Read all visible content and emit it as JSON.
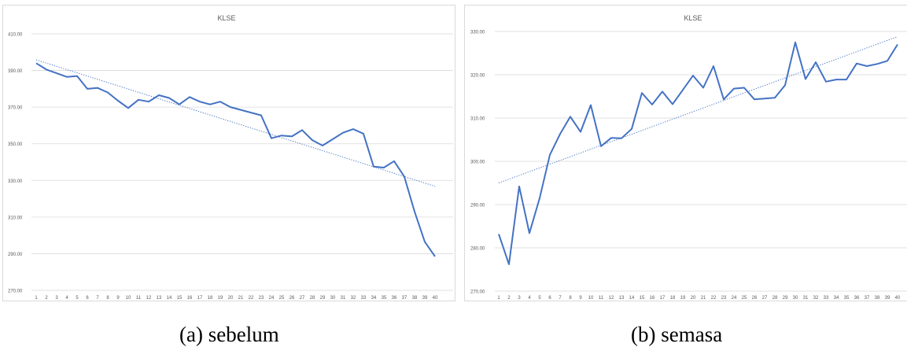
{
  "colors": {
    "line": "#4472c4",
    "trend": "#4472c4",
    "grid": "#d9d9d9",
    "tick_text": "#595959"
  },
  "captions": {
    "a": "(a)  sebelum",
    "b": "(b) semasa"
  },
  "chart_data": [
    {
      "type": "line",
      "title": "KLSE",
      "xlabel": "",
      "ylabel": "",
      "ylim": [
        270,
        410
      ],
      "yticks": [
        "270.00",
        "290.00",
        "310.00",
        "330.00",
        "350.00",
        "370.00",
        "390.00",
        "410.00"
      ],
      "x": [
        "1",
        "2",
        "3",
        "4",
        "5",
        "6",
        "7",
        "8",
        "9",
        "10",
        "11",
        "12",
        "13",
        "14",
        "15",
        "16",
        "17",
        "18",
        "19",
        "20",
        "21",
        "22",
        "23",
        "24",
        "25",
        "26",
        "27",
        "28",
        "29",
        "30",
        "31",
        "32",
        "33",
        "34",
        "35",
        "36",
        "37",
        "38",
        "39",
        "40"
      ],
      "grid": true,
      "trendline": {
        "type": "linear",
        "style": "dotted",
        "start": 395.8,
        "end": 326.8
      },
      "series": [
        {
          "values": [
            394.0,
            390.5,
            388.5,
            386.5,
            387.0,
            380.0,
            380.5,
            378.0,
            373.5,
            369.5,
            374.0,
            373.0,
            376.5,
            375.0,
            371.5,
            375.5,
            373.0,
            371.5,
            373.0,
            370.0,
            368.5,
            367.0,
            365.5,
            353.0,
            354.5,
            354.0,
            357.5,
            352.0,
            349.0,
            352.5,
            356.0,
            358.0,
            355.5,
            337.5,
            337.0,
            340.5,
            332.0,
            313.0,
            296.5,
            288.5
          ]
        }
      ]
    },
    {
      "type": "line",
      "title": "KLSE",
      "xlabel": "",
      "ylabel": "",
      "ylim": [
        270,
        330
      ],
      "yticks": [
        "270.00",
        "280.00",
        "290.00",
        "300.00",
        "310.00",
        "320.00",
        "330.00"
      ],
      "x": [
        "1",
        "2",
        "3",
        "4",
        "5",
        "6",
        "7",
        "8",
        "9",
        "10",
        "11",
        "12",
        "13",
        "14",
        "15",
        "16",
        "17",
        "18",
        "19",
        "20",
        "21",
        "22",
        "23",
        "24",
        "25",
        "26",
        "27",
        "28",
        "29",
        "30",
        "31",
        "32",
        "33",
        "34",
        "35",
        "36",
        "37",
        "38",
        "39",
        "40"
      ],
      "grid": true,
      "trendline": {
        "type": "linear",
        "style": "dotted",
        "start": 295.0,
        "end": 328.8
      },
      "series": [
        {
          "values": [
            283.2,
            276.2,
            294.2,
            283.4,
            291.5,
            301.5,
            306.3,
            310.3,
            306.8,
            313.0,
            303.5,
            305.4,
            305.3,
            307.5,
            315.8,
            313.1,
            316.1,
            313.2,
            316.5,
            319.8,
            317.0,
            322.0,
            314.3,
            316.8,
            317.0,
            314.3,
            314.5,
            314.7,
            317.6,
            327.5,
            319.0,
            322.9,
            318.4,
            318.9,
            318.9,
            322.6,
            322.0,
            322.5,
            323.2,
            327.0
          ]
        }
      ]
    }
  ]
}
